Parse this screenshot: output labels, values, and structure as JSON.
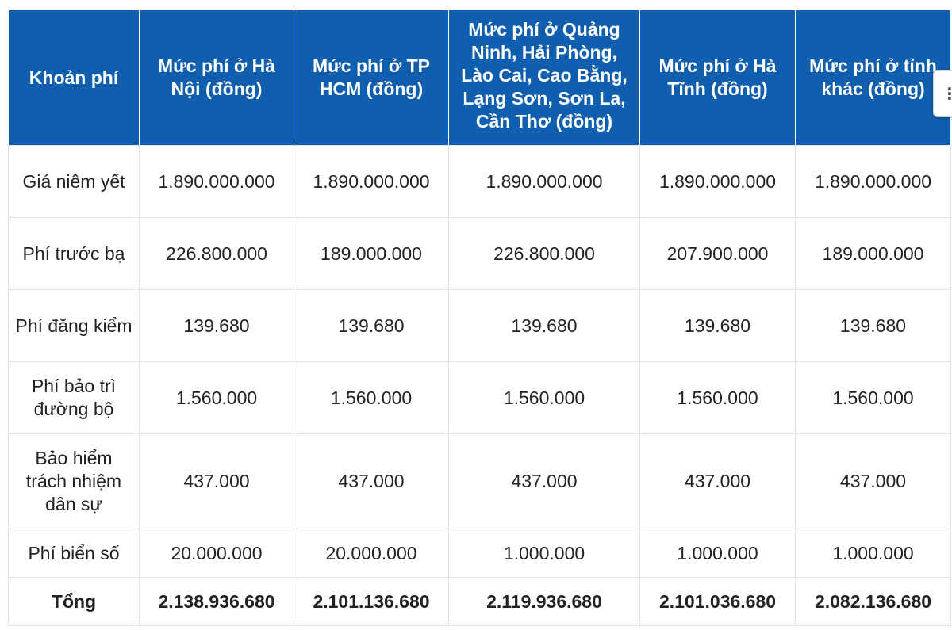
{
  "table": {
    "headers": [
      "Khoản phí",
      "Mức phí ở Hà Nội (đồng)",
      "Mức phí ở TP HCM (đồng)",
      "Mức phí ở Quảng Ninh, Hải Phòng, Lào Cai, Cao Bằng, Lạng Sơn, Sơn La, Cần Thơ (đồng)",
      "Mức phí ở Hà Tĩnh (đồng)",
      "Mức phí ở tỉnh khác (đồng)"
    ],
    "rows": [
      [
        "Giá niêm yết",
        "1.890.000.000",
        "1.890.000.000",
        "1.890.000.000",
        "1.890.000.000",
        "1.890.000.000"
      ],
      [
        "Phí trước bạ",
        "226.800.000",
        "189.000.000",
        "226.800.000",
        "207.900.000",
        "189.000.000"
      ],
      [
        "Phí đăng kiểm",
        "139.680",
        "139.680",
        "139.680",
        "139.680",
        "139.680"
      ],
      [
        "Phí bảo trì đường bộ",
        "1.560.000",
        "1.560.000",
        "1.560.000",
        "1.560.000",
        "1.560.000"
      ],
      [
        "Bảo hiểm trách nhiệm dân sự",
        "437.000",
        "437.000",
        "437.000",
        "437.000",
        "437.000"
      ],
      [
        "Phí biển số",
        "20.000.000",
        "20.000.000",
        "1.000.000",
        "1.000.000",
        "1.000.000"
      ]
    ],
    "total": [
      "Tổng",
      "2.138.936.680",
      "2.101.136.680",
      "2.119.936.680",
      "2.101.036.680",
      "2.082.136.680"
    ]
  },
  "side_tab": {
    "icon": "more-vertical-icon",
    "glyph": "⋮"
  },
  "colors": {
    "header_bg": "#0f5fae",
    "header_text": "#ffffff",
    "cell_text": "#222222",
    "border": "#e3e3e3"
  }
}
